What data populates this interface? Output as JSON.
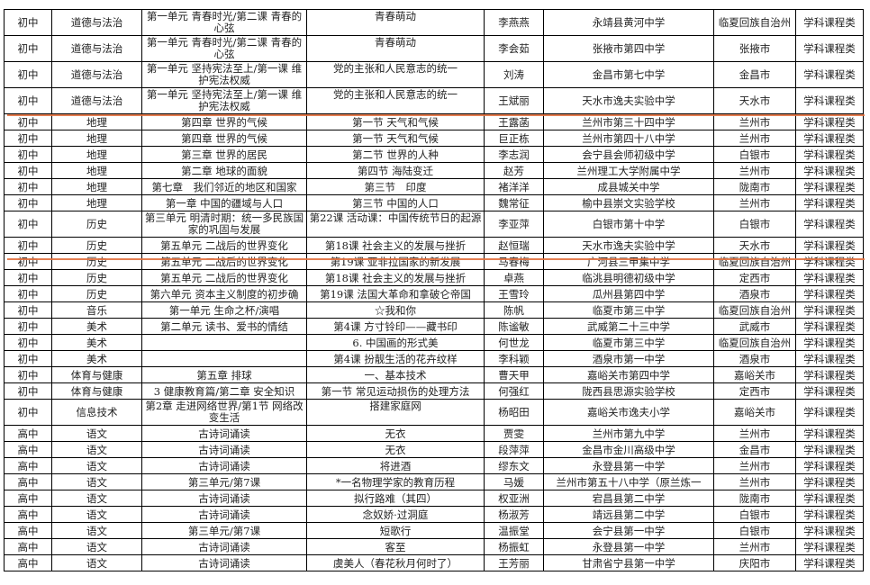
{
  "table": {
    "rows": [
      [
        "初中",
        "道德与法治",
        "第一单元 青春时光/第二课 青春的心弦",
        "青春萌动",
        "李燕燕",
        "永靖县黄河中学",
        "临夏回族自治州",
        "学科课程类"
      ],
      [
        "初中",
        "道德与法治",
        "第一单元 青春时光/第二课 青春的心弦",
        "青春萌动",
        "李会茹",
        "张掖市第四中学",
        "张掖市",
        "学科课程类"
      ],
      [
        "初中",
        "道德与法治",
        "第一单元 坚持宪法至上/第一课 维护宪法权威",
        "党的主张和人民意志的统一",
        "刘涛",
        "金昌市第七中学",
        "金昌市",
        "学科课程类"
      ],
      [
        "初中",
        "道德与法治",
        "第一单元 坚持宪法至上/第一课 维护宪法权威",
        "党的主张和人民意志的统一",
        "王斌丽",
        "天水市逸夫实验中学",
        "天水市",
        "学科课程类"
      ],
      [
        "初中",
        "地理",
        "第四章 世界的气候",
        "第一节 天气和气候",
        "王露菡",
        "兰州市第三十四中学",
        "兰州市",
        "学科课程类"
      ],
      [
        "初中",
        "地理",
        "第四章 世界的气候",
        "第一节 天气和气候",
        "巨正栋",
        "兰州市第四十八中学",
        "兰州市",
        "学科课程类"
      ],
      [
        "初中",
        "地理",
        "第三章 世界的居民",
        "第二节 世界的人种",
        "李志润",
        "会宁县会师初级中学",
        "白银市",
        "学科课程类"
      ],
      [
        "初中",
        "地理",
        "第二章 地球的面貌",
        "第四节 海陆变迁",
        "赵芳",
        "兰州理工大学附属中学",
        "兰州市",
        "学科课程类"
      ],
      [
        "初中",
        "地理",
        "第七章　我们邻近的地区和国家",
        "第三节　印度",
        "褚洋洋",
        "成县城关中学",
        "陇南市",
        "学科课程类"
      ],
      [
        "初中",
        "地理",
        "第一章 中国的疆域与人口",
        "第三节 中国的人口",
        "魏常征",
        "榆中县崇文实验学校",
        "兰州市",
        "学科课程类"
      ],
      [
        "初中",
        "历史",
        "第三单元 明清时期：统一多民族国家的巩固与发展",
        "第22课 活动课：中国传统节日的起源",
        "李亚萍",
        "白银市第十中学",
        "白银市",
        "学科课程类"
      ],
      [
        "初中",
        "历史",
        "第五单元 二战后的世界变化",
        "第18课 社会主义的发展与挫折",
        "赵恒瑞",
        "天水市逸夫实验中学",
        "天水市",
        "学科课程类"
      ],
      [
        "初中",
        "历史",
        "第五单元 二战后的世界变化",
        "第19课 亚非拉国家的新发展",
        "马春梅",
        "广河县三甲集中学",
        "临夏回族自治州",
        "学科课程类"
      ],
      [
        "初中",
        "历史",
        "第五单元 二战后的世界变化",
        "第18课 社会主义的发展与挫折",
        "卓燕",
        "临洮县明德初级中学",
        "定西市",
        "学科课程类"
      ],
      [
        "初中",
        "历史",
        "第六单元 资本主义制度的初步确",
        "第19课 法国大革命和拿破仑帝国",
        "王雪玲",
        "瓜州县第四中学",
        "酒泉市",
        "学科课程类"
      ],
      [
        "初中",
        "音乐",
        "第一单元 生命之杯/演唱",
        "☆我和你",
        "陈帆",
        "临夏市第三中学",
        "临夏回族自治州",
        "学科课程类"
      ],
      [
        "初中",
        "美术",
        "第二单元 读书、爱书的情结",
        "第4课 方寸铃印——藏书印",
        "陈谧敏",
        "武威第二十三中学",
        "武威市",
        "学科课程类"
      ],
      [
        "初中",
        "美术",
        "",
        "6. 中国画的形式美",
        "何世龙",
        "临夏市第三中学",
        "临夏回族自治州",
        "学科课程类"
      ],
      [
        "初中",
        "美术",
        "",
        "第4课 扮靓生活的花卉纹样",
        "李科颖",
        "酒泉市第一中学",
        "酒泉市",
        "学科课程类"
      ],
      [
        "初中",
        "体育与健康",
        "第五章 排球",
        "一、基本技术",
        "曹天甲",
        "嘉峪关市第四中学",
        "嘉峪关市",
        "学科课程类"
      ],
      [
        "初中",
        "体育与健康",
        "3 健康教育篇/第二章 安全知识",
        "第一节 常见运动损伤的处理方法",
        "何强红",
        "陇西县思源实验学校",
        "定西市",
        "学科课程类"
      ],
      [
        "初中",
        "信息技术",
        "第2章 走进网络世界/第1节 网络改变生活",
        "搭建家庭网",
        "杨昭田",
        "嘉峪关市逸夫小学",
        "嘉峪关市",
        "学科课程类"
      ],
      [
        "高中",
        "语文",
        "古诗词诵读",
        "无衣",
        "贾雯",
        "兰州市第九中学",
        "兰州市",
        "学科课程类"
      ],
      [
        "高中",
        "语文",
        "古诗词诵读",
        "无衣",
        "段萍萍",
        "金昌市金川高级中学",
        "金昌市",
        "学科课程类"
      ],
      [
        "高中",
        "语文",
        "古诗词诵读",
        "将进酒",
        "缪东文",
        "永登县第一中学",
        "兰州市",
        "学科课程类"
      ],
      [
        "高中",
        "语文",
        "第三单元/第7课",
        "*一名物理学家的教育历程",
        "马媛",
        "兰州市第五十八中学（原兰炼一",
        "兰州市",
        "学科课程类"
      ],
      [
        "高中",
        "语文",
        "古诗词诵读",
        "拟行路难（其四）",
        "权亚洲",
        "宕昌县第二中学",
        "陇南市",
        "学科课程类"
      ],
      [
        "高中",
        "语文",
        "古诗词诵读",
        "念奴娇·过洞庭",
        "杨淑芳",
        "靖远县第二中学",
        "白银市",
        "学科课程类"
      ],
      [
        "高中",
        "语文",
        "第三单元/第7课",
        "短歌行",
        "温振堂",
        "会宁县第一中学",
        "白银市",
        "学科课程类"
      ],
      [
        "高中",
        "语文",
        "古诗词诵读",
        "客至",
        "杨振虹",
        "永登县第一中学",
        "兰州市",
        "学科课程类"
      ],
      [
        "高中",
        "语文",
        "古诗词诵读",
        "虞美人（春花秋月何时了）",
        "王芳丽",
        "甘肃省宁县第一中学",
        "庆阳市",
        "学科课程类"
      ]
    ]
  },
  "colors": {
    "highlight_line": "#e2703e",
    "border": "#000000"
  }
}
